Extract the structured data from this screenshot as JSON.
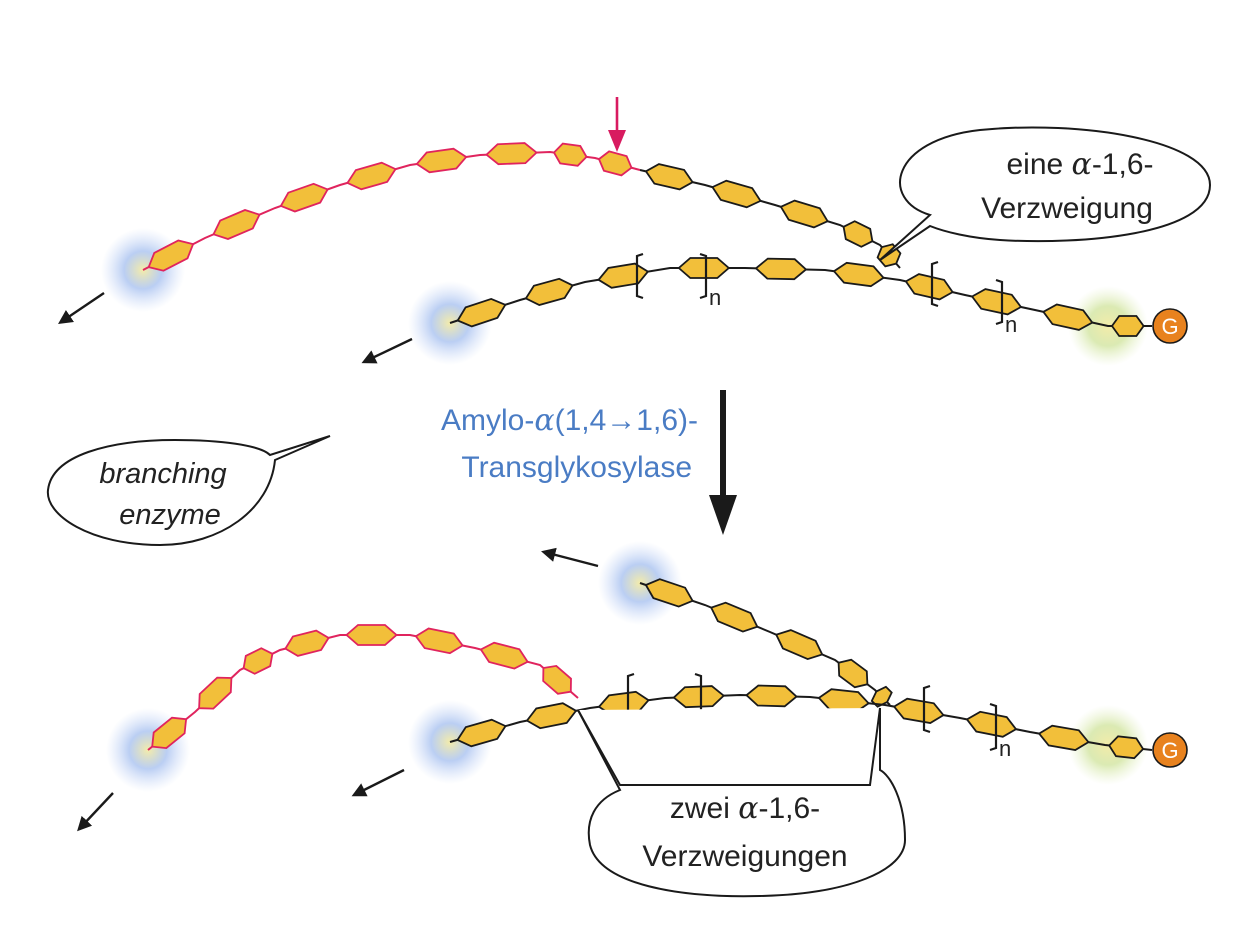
{
  "colors": {
    "glucose_fill": "#f2bf3a",
    "glucose_stroke": "#1a1a1a",
    "transferred_stroke": "#e0245e",
    "cut_arrow": "#d81b60",
    "enzyme_label": "#4a7cc4",
    "glow_end": "#8fb0ec",
    "glow_core": "#f2e88a",
    "glycogenin_fill": "#e8821e",
    "text": "#222222"
  },
  "labels": {
    "bubble_top_line1_pre": "eine ",
    "bubble_top_line1_greek": "α",
    "bubble_top_line1_post": "-1,6-",
    "bubble_top_line2": "Verzweigung",
    "enzyme_line1_pre": "Amylo-",
    "enzyme_line1_greek": "α",
    "enzyme_line1_post": "(1,4→1,6)-",
    "enzyme_line2": "Transglykosylase",
    "branching_line1": "branching",
    "branching_line2": "enzyme",
    "bubble_bottom_line1_pre": "zwei ",
    "bubble_bottom_line1_greek": "α",
    "bubble_bottom_line1_post": "-1,6-",
    "bubble_bottom_line2": "Verzweigungen",
    "repeat_n": "n",
    "glycogenin": "G"
  },
  "icons": {
    "cut_arrow": "down-arrow-icon",
    "reaction_arrow": "down-arrow-icon",
    "chain_end_arrow": "left-arrow-icon",
    "glycogenin": "glycogenin-circle-icon"
  }
}
